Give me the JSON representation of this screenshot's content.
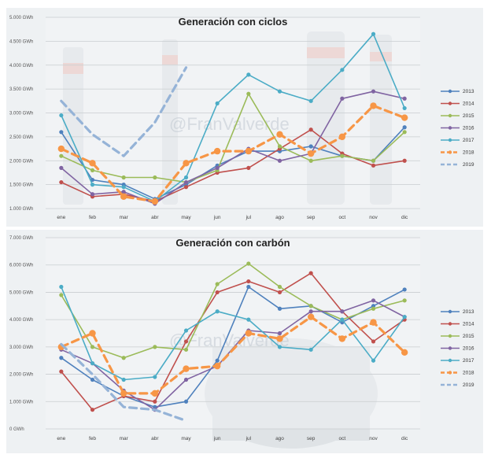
{
  "watermark": "@FranValverde",
  "chart_data": [
    {
      "type": "line",
      "title": "Generación con ciclos",
      "unit": "GWh",
      "categories": [
        "ene",
        "feb",
        "mar",
        "abr",
        "may",
        "jun",
        "jul",
        "ago",
        "sep",
        "oct",
        "nov",
        "dic"
      ],
      "ylim": [
        1000,
        5000
      ],
      "yticks": [
        "1.000 GWh",
        "1.500 GWh",
        "2.000 GWh",
        "2.500 GWh",
        "3.000 GWh",
        "3.500 GWh",
        "4.000 GWh",
        "4.500 GWh",
        "5.000 GWh"
      ],
      "grid": true,
      "legend": "right",
      "series": [
        {
          "name": "2013",
          "color": "#4f81bd",
          "dashed": false,
          "values": [
            2600,
            1600,
            1500,
            1200,
            1500,
            1900,
            2200,
            2200,
            2300,
            2100,
            2000,
            2700
          ]
        },
        {
          "name": "2014",
          "color": "#c0504d",
          "dashed": false,
          "values": [
            1550,
            1250,
            1300,
            1150,
            1450,
            1750,
            1850,
            2250,
            2650,
            2150,
            1900,
            2000
          ]
        },
        {
          "name": "2015",
          "color": "#9bbb59",
          "dashed": false,
          "values": [
            2100,
            1800,
            1650,
            1650,
            1550,
            1800,
            3400,
            2300,
            2000,
            2100,
            2000,
            2600
          ]
        },
        {
          "name": "2016",
          "color": "#8064a2",
          "dashed": false,
          "values": [
            1850,
            1300,
            1350,
            1100,
            1550,
            1850,
            2250,
            2000,
            2150,
            3300,
            3450,
            3300
          ]
        },
        {
          "name": "2017",
          "color": "#4bacc6",
          "dashed": false,
          "values": [
            2950,
            1500,
            1450,
            1150,
            1650,
            3200,
            3800,
            3450,
            3250,
            3900,
            4650,
            3100
          ]
        },
        {
          "name": "2018",
          "color": "#f79646",
          "dashed": true,
          "values": [
            2250,
            1950,
            1250,
            1150,
            1950,
            2200,
            2200,
            2550,
            2150,
            2500,
            3150,
            2900
          ]
        },
        {
          "name": "2019",
          "color": "#95b3d7",
          "dashed": true,
          "values": [
            3250,
            2550,
            2100,
            2800,
            3950,
            null,
            null,
            null,
            null,
            null,
            null,
            null
          ]
        }
      ]
    },
    {
      "type": "line",
      "title": "Generación con carbón",
      "unit": "GWh",
      "categories": [
        "ene",
        "feb",
        "mar",
        "abr",
        "may",
        "jun",
        "jul",
        "ago",
        "sep",
        "oct",
        "nov",
        "dic"
      ],
      "ylim": [
        0,
        7000
      ],
      "yticks": [
        "0 GWh",
        "1.000 GWh",
        "2.000 GWh",
        "3.000 GWh",
        "4.000 GWh",
        "5.000 GWh",
        "6.000 GWh",
        "7.000 GWh"
      ],
      "grid": true,
      "legend": "right",
      "series": [
        {
          "name": "2013",
          "color": "#4f81bd",
          "dashed": false,
          "values": [
            2600,
            1800,
            1200,
            800,
            1000,
            2500,
            5200,
            4400,
            4500,
            3900,
            4500,
            5100
          ]
        },
        {
          "name": "2014",
          "color": "#c0504d",
          "dashed": false,
          "values": [
            2100,
            700,
            1200,
            1000,
            3200,
            5000,
            5400,
            5000,
            5700,
            4300,
            3200,
            4000
          ]
        },
        {
          "name": "2015",
          "color": "#9bbb59",
          "dashed": false,
          "values": [
            4900,
            3000,
            2600,
            3000,
            2900,
            5300,
            6050,
            5200,
            4500,
            4000,
            4400,
            4700
          ]
        },
        {
          "name": "2016",
          "color": "#8064a2",
          "dashed": false,
          "values": [
            2900,
            2400,
            1400,
            700,
            1800,
            2300,
            3600,
            3500,
            4300,
            4300,
            4700,
            4100
          ]
        },
        {
          "name": "2017",
          "color": "#4bacc6",
          "dashed": false,
          "values": [
            5200,
            2400,
            1800,
            1900,
            3600,
            4300,
            4000,
            3000,
            2900,
            4000,
            2500,
            4100
          ]
        },
        {
          "name": "2018",
          "color": "#f79646",
          "dashed": true,
          "values": [
            3000,
            3500,
            1300,
            1300,
            2200,
            2300,
            3500,
            3300,
            4100,
            3300,
            3900,
            2800
          ]
        },
        {
          "name": "2019",
          "color": "#95b3d7",
          "dashed": true,
          "values": [
            3100,
            2000,
            800,
            700,
            300,
            null,
            null,
            null,
            null,
            null,
            null,
            null
          ]
        }
      ]
    }
  ]
}
